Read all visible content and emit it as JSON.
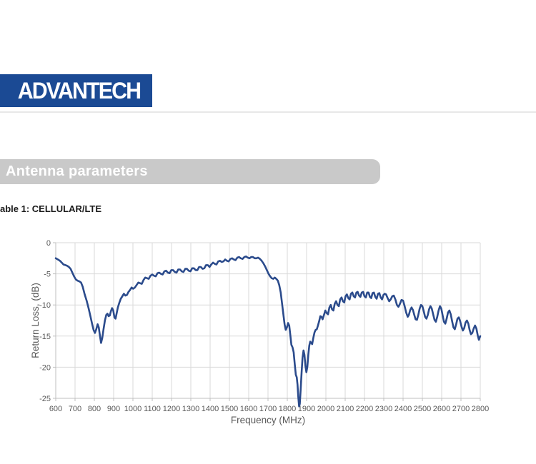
{
  "page": {
    "logo_text": "ADVANTECH",
    "section_title": "Antenna parameters",
    "table_caption": "able 1: CELLULAR/LTE"
  },
  "colors": {
    "logo_bg": "#1b4a94",
    "logo_text": "#ffffff",
    "divider": "#e8e8e8",
    "header_bar_bg": "#c9c9c9",
    "header_bar_text": "#ffffff",
    "caption_text": "#1a1a1a",
    "series_line": "#2b4b8c",
    "gridline": "#d9d9d9",
    "axis_line": "#bfbfbf",
    "axis_text": "#595959"
  },
  "chart_data": {
    "type": "line",
    "title": "",
    "xlabel": "Frequency (MHz)",
    "ylabel": "Return Loss, (dB)",
    "xlim": [
      600,
      2800
    ],
    "ylim": [
      -25,
      0
    ],
    "grid": true,
    "legend_position": "none",
    "x_ticks": [
      600,
      700,
      800,
      900,
      1000,
      1100,
      1200,
      1300,
      1400,
      1500,
      1600,
      1700,
      1800,
      1900,
      2000,
      2100,
      2200,
      2300,
      2400,
      2500,
      2600,
      2700,
      2800
    ],
    "y_ticks": [
      0,
      -5,
      -10,
      -15,
      -20,
      -25
    ],
    "series": [
      {
        "name": "CELLULAR/LTE",
        "color": "#2b4b8c",
        "points": [
          [
            600,
            -2.5
          ],
          [
            611,
            -2.7
          ],
          [
            622,
            -2.9
          ],
          [
            631,
            -3.2
          ],
          [
            640,
            -3.5
          ],
          [
            650,
            -3.6
          ],
          [
            659,
            -3.7
          ],
          [
            668,
            -3.9
          ],
          [
            677,
            -4.2
          ],
          [
            686,
            -4.8
          ],
          [
            695,
            -5.4
          ],
          [
            704,
            -5.9
          ],
          [
            713,
            -6.1
          ],
          [
            722,
            -6.2
          ],
          [
            731,
            -6.4
          ],
          [
            740,
            -7.1
          ],
          [
            750,
            -8.3
          ],
          [
            760,
            -9.3
          ],
          [
            770,
            -10.5
          ],
          [
            779,
            -11.7
          ],
          [
            788,
            -13.0
          ],
          [
            796,
            -14.0
          ],
          [
            803,
            -14.5
          ],
          [
            810,
            -13.9
          ],
          [
            817,
            -13.1
          ],
          [
            823,
            -13.6
          ],
          [
            829,
            -14.9
          ],
          [
            835,
            -16.1
          ],
          [
            841,
            -15.3
          ],
          [
            848,
            -13.8
          ],
          [
            855,
            -12.5
          ],
          [
            862,
            -11.6
          ],
          [
            868,
            -11.4
          ],
          [
            874,
            -11.8
          ],
          [
            880,
            -11.7
          ],
          [
            886,
            -11.0
          ],
          [
            892,
            -10.5
          ],
          [
            898,
            -10.9
          ],
          [
            904,
            -12.0
          ],
          [
            910,
            -12.2
          ],
          [
            916,
            -11.3
          ],
          [
            922,
            -10.4
          ],
          [
            929,
            -9.7
          ],
          [
            937,
            -9.0
          ],
          [
            945,
            -8.6
          ],
          [
            953,
            -8.2
          ],
          [
            961,
            -8.5
          ],
          [
            969,
            -8.4
          ],
          [
            977,
            -7.9
          ],
          [
            985,
            -7.6
          ],
          [
            993,
            -7.2
          ],
          [
            1001,
            -7.4
          ],
          [
            1010,
            -7.2
          ],
          [
            1019,
            -6.8
          ],
          [
            1028,
            -6.4
          ],
          [
            1037,
            -6.5
          ],
          [
            1046,
            -6.6
          ],
          [
            1055,
            -6.0
          ],
          [
            1064,
            -5.6
          ],
          [
            1073,
            -5.7
          ],
          [
            1082,
            -5.8
          ],
          [
            1091,
            -5.3
          ],
          [
            1100,
            -5.1
          ],
          [
            1109,
            -5.3
          ],
          [
            1118,
            -5.4
          ],
          [
            1127,
            -4.9
          ],
          [
            1136,
            -4.8
          ],
          [
            1145,
            -5.0
          ],
          [
            1154,
            -5.1
          ],
          [
            1163,
            -4.6
          ],
          [
            1172,
            -4.5
          ],
          [
            1181,
            -4.8
          ],
          [
            1190,
            -4.9
          ],
          [
            1199,
            -4.4
          ],
          [
            1208,
            -4.4
          ],
          [
            1217,
            -4.7
          ],
          [
            1226,
            -4.8
          ],
          [
            1235,
            -4.3
          ],
          [
            1244,
            -4.3
          ],
          [
            1253,
            -4.6
          ],
          [
            1262,
            -4.7
          ],
          [
            1271,
            -4.2
          ],
          [
            1280,
            -4.2
          ],
          [
            1289,
            -4.5
          ],
          [
            1298,
            -4.6
          ],
          [
            1307,
            -4.1
          ],
          [
            1316,
            -4.1
          ],
          [
            1325,
            -4.4
          ],
          [
            1334,
            -4.4
          ],
          [
            1343,
            -3.9
          ],
          [
            1352,
            -3.9
          ],
          [
            1361,
            -4.2
          ],
          [
            1370,
            -4.1
          ],
          [
            1379,
            -3.6
          ],
          [
            1388,
            -3.6
          ],
          [
            1397,
            -3.9
          ],
          [
            1406,
            -3.5
          ],
          [
            1415,
            -3.2
          ],
          [
            1424,
            -3.4
          ],
          [
            1433,
            -3.5
          ],
          [
            1442,
            -3.0
          ],
          [
            1451,
            -2.9
          ],
          [
            1460,
            -3.1
          ],
          [
            1469,
            -3.0
          ],
          [
            1478,
            -2.7
          ],
          [
            1487,
            -2.9
          ],
          [
            1496,
            -3.0
          ],
          [
            1505,
            -2.6
          ],
          [
            1514,
            -2.5
          ],
          [
            1523,
            -2.7
          ],
          [
            1532,
            -2.8
          ],
          [
            1541,
            -2.4
          ],
          [
            1550,
            -2.3
          ],
          [
            1559,
            -2.5
          ],
          [
            1568,
            -2.6
          ],
          [
            1577,
            -2.3
          ],
          [
            1586,
            -2.2
          ],
          [
            1595,
            -2.4
          ],
          [
            1604,
            -2.5
          ],
          [
            1613,
            -2.3
          ],
          [
            1622,
            -2.3
          ],
          [
            1631,
            -2.5
          ],
          [
            1640,
            -2.5
          ],
          [
            1649,
            -2.4
          ],
          [
            1658,
            -2.6
          ],
          [
            1667,
            -2.9
          ],
          [
            1676,
            -3.3
          ],
          [
            1685,
            -3.8
          ],
          [
            1694,
            -4.4
          ],
          [
            1703,
            -5.0
          ],
          [
            1711,
            -5.4
          ],
          [
            1719,
            -5.7
          ],
          [
            1727,
            -5.8
          ],
          [
            1735,
            -5.6
          ],
          [
            1743,
            -5.8
          ],
          [
            1751,
            -6.1
          ],
          [
            1758,
            -6.8
          ],
          [
            1766,
            -8.0
          ],
          [
            1773,
            -9.8
          ],
          [
            1780,
            -11.6
          ],
          [
            1786,
            -13.1
          ],
          [
            1792,
            -14.0
          ],
          [
            1798,
            -13.6
          ],
          [
            1804,
            -12.9
          ],
          [
            1810,
            -13.3
          ],
          [
            1816,
            -14.9
          ],
          [
            1821,
            -16.4
          ],
          [
            1827,
            -16.8
          ],
          [
            1833,
            -17.6
          ],
          [
            1839,
            -19.6
          ],
          [
            1844,
            -21.2
          ],
          [
            1849,
            -21.6
          ],
          [
            1853,
            -22.8
          ],
          [
            1857,
            -24.8
          ],
          [
            1861,
            -26.3
          ],
          [
            1865,
            -25.9
          ],
          [
            1869,
            -23.8
          ],
          [
            1874,
            -20.9
          ],
          [
            1879,
            -18.5
          ],
          [
            1884,
            -17.3
          ],
          [
            1889,
            -18.0
          ],
          [
            1894,
            -19.8
          ],
          [
            1899,
            -20.8
          ],
          [
            1904,
            -19.9
          ],
          [
            1909,
            -18.0
          ],
          [
            1914,
            -16.5
          ],
          [
            1919,
            -15.9
          ],
          [
            1924,
            -16.1
          ],
          [
            1929,
            -16.3
          ],
          [
            1935,
            -15.3
          ],
          [
            1941,
            -14.4
          ],
          [
            1947,
            -14.0
          ],
          [
            1953,
            -13.9
          ],
          [
            1959,
            -13.3
          ],
          [
            1965,
            -12.6
          ],
          [
            1971,
            -11.8
          ],
          [
            1977,
            -11.9
          ],
          [
            1983,
            -12.3
          ],
          [
            1990,
            -11.6
          ],
          [
            1997,
            -10.9
          ],
          [
            2004,
            -11.3
          ],
          [
            2011,
            -11.5
          ],
          [
            2018,
            -10.4
          ],
          [
            2025,
            -10.0
          ],
          [
            2032,
            -10.7
          ],
          [
            2039,
            -10.9
          ],
          [
            2046,
            -9.8
          ],
          [
            2053,
            -9.4
          ],
          [
            2060,
            -10.0
          ],
          [
            2067,
            -10.2
          ],
          [
            2074,
            -9.1
          ],
          [
            2081,
            -8.8
          ],
          [
            2088,
            -9.4
          ],
          [
            2095,
            -9.6
          ],
          [
            2102,
            -8.6
          ],
          [
            2109,
            -8.3
          ],
          [
            2116,
            -8.9
          ],
          [
            2123,
            -9.1
          ],
          [
            2130,
            -8.2
          ],
          [
            2137,
            -8.0
          ],
          [
            2144,
            -8.6
          ],
          [
            2151,
            -8.8
          ],
          [
            2158,
            -8.0
          ],
          [
            2165,
            -7.9
          ],
          [
            2172,
            -8.5
          ],
          [
            2179,
            -8.7
          ],
          [
            2186,
            -8.0
          ],
          [
            2193,
            -7.9
          ],
          [
            2200,
            -8.6
          ],
          [
            2207,
            -8.8
          ],
          [
            2214,
            -8.0
          ],
          [
            2221,
            -8.0
          ],
          [
            2228,
            -8.7
          ],
          [
            2235,
            -8.9
          ],
          [
            2242,
            -8.1
          ],
          [
            2249,
            -8.0
          ],
          [
            2256,
            -8.7
          ],
          [
            2263,
            -9.0
          ],
          [
            2270,
            -8.2
          ],
          [
            2277,
            -8.1
          ],
          [
            2284,
            -8.8
          ],
          [
            2291,
            -9.1
          ],
          [
            2298,
            -8.4
          ],
          [
            2305,
            -8.2
          ],
          [
            2312,
            -8.3
          ],
          [
            2320,
            -8.9
          ],
          [
            2328,
            -9.4
          ],
          [
            2336,
            -9.1
          ],
          [
            2344,
            -8.6
          ],
          [
            2352,
            -8.5
          ],
          [
            2360,
            -9.1
          ],
          [
            2368,
            -10.0
          ],
          [
            2376,
            -10.3
          ],
          [
            2384,
            -9.8
          ],
          [
            2392,
            -9.2
          ],
          [
            2400,
            -9.3
          ],
          [
            2408,
            -10.2
          ],
          [
            2416,
            -11.2
          ],
          [
            2424,
            -11.9
          ],
          [
            2430,
            -11.6
          ],
          [
            2437,
            -10.8
          ],
          [
            2444,
            -10.4
          ],
          [
            2451,
            -10.8
          ],
          [
            2458,
            -11.6
          ],
          [
            2465,
            -12.3
          ],
          [
            2472,
            -12.4
          ],
          [
            2479,
            -11.6
          ],
          [
            2486,
            -10.6
          ],
          [
            2493,
            -10.0
          ],
          [
            2500,
            -10.2
          ],
          [
            2507,
            -11.0
          ],
          [
            2514,
            -11.9
          ],
          [
            2521,
            -12.2
          ],
          [
            2528,
            -11.6
          ],
          [
            2535,
            -10.7
          ],
          [
            2542,
            -10.2
          ],
          [
            2549,
            -10.6
          ],
          [
            2556,
            -11.5
          ],
          [
            2563,
            -12.4
          ],
          [
            2570,
            -12.7
          ],
          [
            2577,
            -11.9
          ],
          [
            2584,
            -10.9
          ],
          [
            2591,
            -10.2
          ],
          [
            2598,
            -10.6
          ],
          [
            2605,
            -11.7
          ],
          [
            2612,
            -12.7
          ],
          [
            2619,
            -13.0
          ],
          [
            2626,
            -12.2
          ],
          [
            2633,
            -11.2
          ],
          [
            2640,
            -10.9
          ],
          [
            2647,
            -11.5
          ],
          [
            2654,
            -12.6
          ],
          [
            2661,
            -13.6
          ],
          [
            2668,
            -13.9
          ],
          [
            2675,
            -13.1
          ],
          [
            2682,
            -12.2
          ],
          [
            2689,
            -12.0
          ],
          [
            2696,
            -12.6
          ],
          [
            2703,
            -13.5
          ],
          [
            2710,
            -14.1
          ],
          [
            2717,
            -13.7
          ],
          [
            2724,
            -12.8
          ],
          [
            2731,
            -12.5
          ],
          [
            2738,
            -13.0
          ],
          [
            2745,
            -14.0
          ],
          [
            2752,
            -14.7
          ],
          [
            2759,
            -14.5
          ],
          [
            2766,
            -13.8
          ],
          [
            2773,
            -13.3
          ],
          [
            2780,
            -13.8
          ],
          [
            2787,
            -14.9
          ],
          [
            2793,
            -15.6
          ],
          [
            2800,
            -15.0
          ]
        ]
      }
    ]
  }
}
